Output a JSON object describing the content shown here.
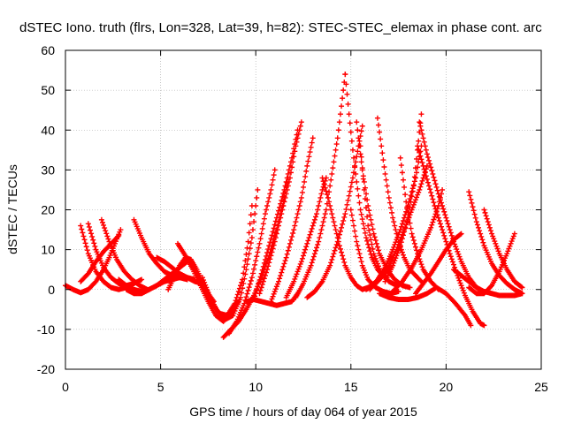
{
  "chart_data": {
    "type": "scatter",
    "title": "dSTEC Iono. truth (flrs, Lon=328, Lat=39, h=82): STEC-STEC_elemax in phase cont. arc",
    "xlabel": "GPS time / hours of day 064 of year 2015",
    "ylabel": "dSTEC  / TECUs",
    "xlim": [
      0,
      25
    ],
    "ylim": [
      -20,
      60
    ],
    "xticks": [
      0,
      5,
      10,
      15,
      20,
      25
    ],
    "yticks": [
      -20,
      -10,
      0,
      10,
      20,
      30,
      40,
      50,
      60
    ],
    "grid": true,
    "marker": "+",
    "color": "#ff0000",
    "series": [
      {
        "x": [
          0.0,
          0.4,
          0.8,
          1.2,
          1.6,
          2.0,
          2.3,
          2.6,
          2.9
        ],
        "y": [
          1.0,
          0.0,
          -0.8,
          0.0,
          2.0,
          5.0,
          8.0,
          11.5,
          15.0
        ]
      },
      {
        "x": [
          0.8,
          1.2,
          1.6,
          2.0,
          2.4,
          2.8,
          3.2
        ],
        "y": [
          16.0,
          9.0,
          4.5,
          2.0,
          0.5,
          0.0,
          0.5
        ]
      },
      {
        "x": [
          1.2,
          1.6,
          2.0,
          2.4,
          2.8,
          3.2,
          3.6,
          4.0
        ],
        "y": [
          16.5,
          10.0,
          5.5,
          3.0,
          1.5,
          1.0,
          1.5,
          2.5
        ]
      },
      {
        "x": [
          1.9,
          2.3,
          2.7,
          3.1,
          3.5,
          3.9,
          4.3
        ],
        "y": [
          17.5,
          12.0,
          7.5,
          4.5,
          2.5,
          1.0,
          0.0
        ]
      },
      {
        "x": [
          0.8,
          1.2,
          1.6,
          2.0,
          2.4,
          2.6,
          2.8
        ],
        "y": [
          2.0,
          4.0,
          7.0,
          9.5,
          11.5,
          12.5,
          13.5
        ]
      },
      {
        "x": [
          3.6,
          4.0,
          4.4,
          4.8,
          5.2,
          5.6,
          6.0,
          6.4
        ],
        "y": [
          17.5,
          13.0,
          9.0,
          6.5,
          4.5,
          3.5,
          3.0,
          2.5
        ]
      },
      {
        "x": [
          2.8,
          3.2,
          3.6,
          4.0,
          4.4,
          4.8,
          5.2,
          5.6,
          6.0,
          6.4
        ],
        "y": [
          2.5,
          1.0,
          0.0,
          -0.5,
          0.0,
          1.0,
          2.5,
          4.0,
          5.5,
          7.0
        ]
      },
      {
        "x": [
          3.2,
          3.6,
          4.0,
          4.4,
          4.8,
          5.2,
          5.6,
          6.0,
          6.4,
          6.8
        ],
        "y": [
          0.0,
          -1.0,
          -1.0,
          0.0,
          1.0,
          2.0,
          2.5,
          3.0,
          3.0,
          2.5
        ]
      },
      {
        "x": [
          4.8,
          5.2,
          5.6,
          6.0,
          6.4,
          6.8,
          7.2
        ],
        "y": [
          8.0,
          7.0,
          5.5,
          4.0,
          3.0,
          2.0,
          1.5
        ]
      },
      {
        "x": [
          5.4,
          5.7,
          6.0,
          6.3,
          6.6,
          6.9,
          7.2,
          7.5,
          7.8
        ],
        "y": [
          0.0,
          3.0,
          6.0,
          8.0,
          7.5,
          5.0,
          2.0,
          -1.0,
          -3.0
        ]
      },
      {
        "x": [
          5.9,
          6.3,
          6.7,
          7.1,
          7.5,
          7.9,
          8.3,
          8.7,
          9.1
        ],
        "y": [
          11.5,
          8.5,
          5.0,
          1.0,
          -3.0,
          -6.5,
          -8.0,
          -6.0,
          -3.0
        ]
      },
      {
        "x": [
          6.5,
          6.9,
          7.3,
          7.7,
          8.1,
          8.5,
          8.9,
          9.3,
          9.6,
          9.8
        ],
        "y": [
          7.5,
          4.0,
          0.0,
          -3.5,
          -6.0,
          -6.5,
          -3.5,
          2.5,
          12.0,
          21.0
        ]
      },
      {
        "x": [
          7.2,
          7.6,
          8.0,
          8.4,
          8.8,
          9.2,
          9.5,
          9.8,
          10.1
        ],
        "y": [
          3.0,
          -2.0,
          -5.5,
          -7.5,
          -6.5,
          -2.0,
          5.0,
          13.0,
          25.0
        ]
      },
      {
        "x": [
          8.3,
          8.7,
          9.1,
          9.5,
          9.9,
          10.3,
          10.7,
          11.1,
          11.4,
          11.7
        ],
        "y": [
          -12.0,
          -10.0,
          -8.0,
          -5.0,
          -1.5,
          3.0,
          8.5,
          15.0,
          21.0,
          28.0
        ]
      },
      {
        "x": [
          8.6,
          9.0,
          9.4,
          9.8,
          10.2,
          10.5,
          10.8,
          11.0
        ],
        "y": [
          -11.0,
          -8.0,
          -3.5,
          3.0,
          11.5,
          19.0,
          25.0,
          30.0
        ]
      },
      {
        "x": [
          9.5,
          9.9,
          10.3,
          10.7,
          11.1,
          11.5,
          11.9,
          12.2
        ],
        "y": [
          -3.0,
          -2.5,
          -3.0,
          -3.5,
          -4.0,
          -3.5,
          -3.0,
          -1.0
        ]
      },
      {
        "x": [
          9.9,
          10.3,
          10.7,
          11.1,
          11.5,
          11.9,
          12.2
        ],
        "y": [
          -2.5,
          4.0,
          11.0,
          18.0,
          25.0,
          33.0,
          40.0
        ]
      },
      {
        "x": [
          10.2,
          10.6,
          11.0,
          11.4,
          11.8,
          12.1,
          12.4
        ],
        "y": [
          -1.0,
          5.0,
          12.0,
          20.0,
          28.0,
          36.0,
          42.0
        ]
      },
      {
        "x": [
          10.8,
          11.2,
          11.6,
          12.0,
          12.4,
          12.7,
          13.0
        ],
        "y": [
          -3.0,
          2.0,
          8.0,
          15.0,
          23.0,
          31.0,
          38.0
        ]
      },
      {
        "x": [
          11.6,
          12.0,
          12.4,
          12.8,
          13.2,
          13.5,
          13.7
        ],
        "y": [
          -2.0,
          2.0,
          7.0,
          13.0,
          19.0,
          25.0,
          28.0
        ]
      },
      {
        "x": [
          13.5,
          13.8,
          14.1,
          14.4,
          14.7,
          15.0,
          15.3,
          15.6,
          15.9,
          16.2,
          16.5,
          16.8,
          17.1
        ],
        "y": [
          28.0,
          23.0,
          17.0,
          11.0,
          6.0,
          3.0,
          1.0,
          0.0,
          0.5,
          1.5,
          2.5,
          4.0,
          6.0
        ]
      },
      {
        "x": [
          12.1,
          12.5,
          12.9,
          13.3,
          13.7,
          14.0,
          14.3,
          14.5,
          14.7
        ],
        "y": [
          -2.0,
          1.5,
          6.0,
          12.0,
          20.0,
          29.0,
          38.0,
          46.0,
          54.0
        ]
      },
      {
        "x": [
          14.7,
          14.9,
          15.1,
          15.3,
          15.5,
          15.8,
          16.1,
          16.4,
          16.8
        ],
        "y": [
          54.0,
          44.0,
          35.0,
          27.0,
          20.0,
          13.0,
          8.0,
          5.0,
          3.0
        ]
      },
      {
        "x": [
          12.7,
          13.1,
          13.5,
          13.9,
          14.3,
          14.7,
          15.1,
          15.4,
          15.6
        ],
        "y": [
          -2.0,
          -0.5,
          2.0,
          6.0,
          12.0,
          19.0,
          28.0,
          36.0,
          41.0
        ]
      },
      {
        "x": [
          15.3,
          15.6,
          15.9,
          16.2,
          16.5,
          16.9,
          17.3,
          17.7,
          18.1
        ],
        "y": [
          42.0,
          30.0,
          21.0,
          14.0,
          9.0,
          5.0,
          2.5,
          1.0,
          0.5
        ]
      },
      {
        "x": [
          15.0,
          15.3,
          15.6,
          15.9,
          16.3,
          16.7,
          17.1,
          17.5
        ],
        "y": [
          20.0,
          12.0,
          6.0,
          2.5,
          0.5,
          -0.5,
          -1.0,
          -0.5
        ]
      },
      {
        "x": [
          15.5,
          15.7,
          15.9,
          16.2,
          16.6,
          17.0,
          17.4
        ],
        "y": [
          36.0,
          25.0,
          16.0,
          9.0,
          4.0,
          2.0,
          1.0
        ]
      },
      {
        "x": [
          16.4,
          16.6,
          16.8,
          17.0,
          17.2,
          17.5,
          17.8,
          18.1,
          18.4,
          18.7
        ],
        "y": [
          43.0,
          36.0,
          29.0,
          23.0,
          18.0,
          12.0,
          8.0,
          5.0,
          3.5,
          2.0
        ]
      },
      {
        "x": [
          15.8,
          16.2,
          16.6,
          17.0,
          17.4,
          17.8,
          18.2,
          18.6,
          19.0
        ],
        "y": [
          0.0,
          1.0,
          3.0,
          6.0,
          10.0,
          15.0,
          20.0,
          25.0,
          31.0
        ]
      },
      {
        "x": [
          16.0,
          16.4,
          16.8,
          17.2,
          17.6,
          18.0,
          18.4,
          18.7
        ],
        "y": [
          0.0,
          2.5,
          5.5,
          10.0,
          15.0,
          21.0,
          28.0,
          36.0
        ]
      },
      {
        "x": [
          16.8,
          17.2,
          17.6,
          18.0,
          18.3,
          18.5,
          18.7
        ],
        "y": [
          2.0,
          6.0,
          11.0,
          18.0,
          26.0,
          35.0,
          44.0
        ]
      },
      {
        "x": [
          17.6,
          17.9,
          18.2,
          18.5,
          18.8,
          19.2,
          19.6
        ],
        "y": [
          33.0,
          22.0,
          14.0,
          9.0,
          5.0,
          2.0,
          0.0
        ]
      },
      {
        "x": [
          18.6,
          18.8,
          19.0,
          19.3,
          19.6,
          20.0,
          20.4,
          20.8,
          21.2,
          21.6
        ],
        "y": [
          42.0,
          38.0,
          34.0,
          29.0,
          24.0,
          18.0,
          12.0,
          7.0,
          3.0,
          0.5
        ]
      },
      {
        "x": [
          18.5,
          18.8,
          19.1,
          19.4,
          19.8,
          20.2,
          20.6,
          21.0,
          21.4,
          21.8,
          22.0
        ],
        "y": [
          36.0,
          31.0,
          26.0,
          21.0,
          15.0,
          9.0,
          3.5,
          -1.5,
          -5.5,
          -8.5,
          -9.0
        ]
      },
      {
        "x": [
          16.5,
          17.0,
          17.5,
          18.0,
          18.5,
          19.0,
          19.5,
          20.0,
          20.5,
          21.0,
          21.3
        ],
        "y": [
          -1.0,
          -2.0,
          -2.5,
          -2.5,
          -2.0,
          -1.0,
          0.5,
          -1.0,
          -3.5,
          -6.5,
          -9.0
        ]
      },
      {
        "x": [
          17.2,
          17.7,
          18.2,
          18.7,
          19.2,
          19.6,
          19.8
        ],
        "y": [
          -0.5,
          2.0,
          5.5,
          10.0,
          15.5,
          21.0,
          25.0
        ]
      },
      {
        "x": [
          18.4,
          18.8,
          19.2,
          19.6,
          20.0,
          20.4,
          20.8
        ],
        "y": [
          -1.0,
          1.5,
          4.0,
          7.0,
          10.0,
          12.5,
          14.0
        ]
      },
      {
        "x": [
          21.2,
          21.6,
          22.0,
          22.4,
          22.8,
          23.2,
          23.6,
          24.0
        ],
        "y": [
          24.5,
          17.0,
          11.0,
          6.5,
          3.5,
          1.5,
          0.0,
          -1.0
        ]
      },
      {
        "x": [
          22.0,
          22.4,
          22.8,
          23.2,
          23.6,
          24.0
        ],
        "y": [
          20.0,
          14.0,
          9.0,
          5.0,
          2.0,
          0.5
        ]
      },
      {
        "x": [
          21.2,
          21.6,
          22.0,
          22.4,
          22.8,
          23.2,
          23.6
        ],
        "y": [
          0.5,
          -1.0,
          -1.0,
          1.0,
          4.5,
          9.0,
          14.0
        ]
      },
      {
        "x": [
          20.4,
          20.8,
          21.2,
          21.6,
          22.0,
          22.4,
          22.8,
          23.2,
          23.6,
          24.0
        ],
        "y": [
          5.0,
          3.5,
          2.0,
          0.5,
          -0.5,
          -1.0,
          -1.5,
          -1.5,
          -1.5,
          -1.0
        ]
      }
    ]
  }
}
